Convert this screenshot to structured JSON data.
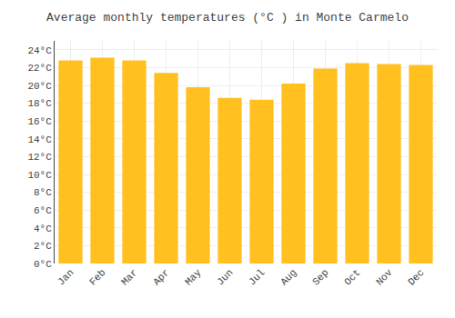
{
  "chart_data": {
    "type": "bar",
    "title": "Average monthly temperatures (°C ) in Monte Carmelo",
    "categories": [
      "Jan",
      "Feb",
      "Mar",
      "Apr",
      "May",
      "Jun",
      "Jul",
      "Aug",
      "Sep",
      "Oct",
      "Nov",
      "Dec"
    ],
    "values": [
      22.8,
      23.1,
      22.8,
      21.4,
      19.8,
      18.6,
      18.4,
      20.2,
      21.9,
      22.5,
      22.4,
      22.3
    ],
    "color": "#FFC020",
    "ylim": [
      0,
      25
    ],
    "yticks": [
      {
        "value": 0,
        "label": "0°C"
      },
      {
        "value": 2,
        "label": "2°C"
      },
      {
        "value": 4,
        "label": "4°C"
      },
      {
        "value": 6,
        "label": "6°C"
      },
      {
        "value": 8,
        "label": "8°C"
      },
      {
        "value": 10,
        "label": "10°C"
      },
      {
        "value": 12,
        "label": "12°C"
      },
      {
        "value": 14,
        "label": "14°C"
      },
      {
        "value": 16,
        "label": "16°C"
      },
      {
        "value": 18,
        "label": "18°C"
      },
      {
        "value": 20,
        "label": "20°C"
      },
      {
        "value": 22,
        "label": "22°C"
      },
      {
        "value": 24,
        "label": "24°C"
      }
    ],
    "grid": true
  }
}
